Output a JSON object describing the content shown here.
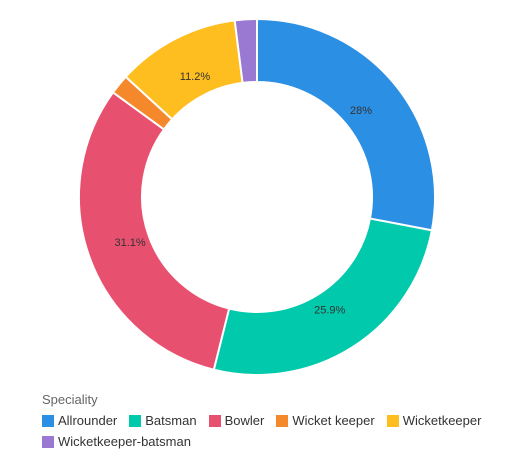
{
  "chart_data": {
    "type": "pie",
    "variant": "donut",
    "legend_title": "Speciality",
    "legend_position": "bottom-left",
    "series": [
      {
        "name": "Allrounder",
        "value": 28,
        "label": "28%",
        "color": "#2b8fe3"
      },
      {
        "name": "Batsman",
        "value": 25.9,
        "label": "25.9%",
        "color": "#00c9ac"
      },
      {
        "name": "Bowler",
        "value": 31.1,
        "label": "31.1%",
        "color": "#e8506f"
      },
      {
        "name": "Wicket keeper",
        "value": 1.8,
        "label": "",
        "color": "#f5882a"
      },
      {
        "name": "Wicketkeeper",
        "value": 11.2,
        "label": "11.2%",
        "color": "#ffbe1f"
      },
      {
        "name": "Wicketkeeper-batsman",
        "value": 2,
        "label": "",
        "color": "#9a79d3"
      }
    ]
  }
}
